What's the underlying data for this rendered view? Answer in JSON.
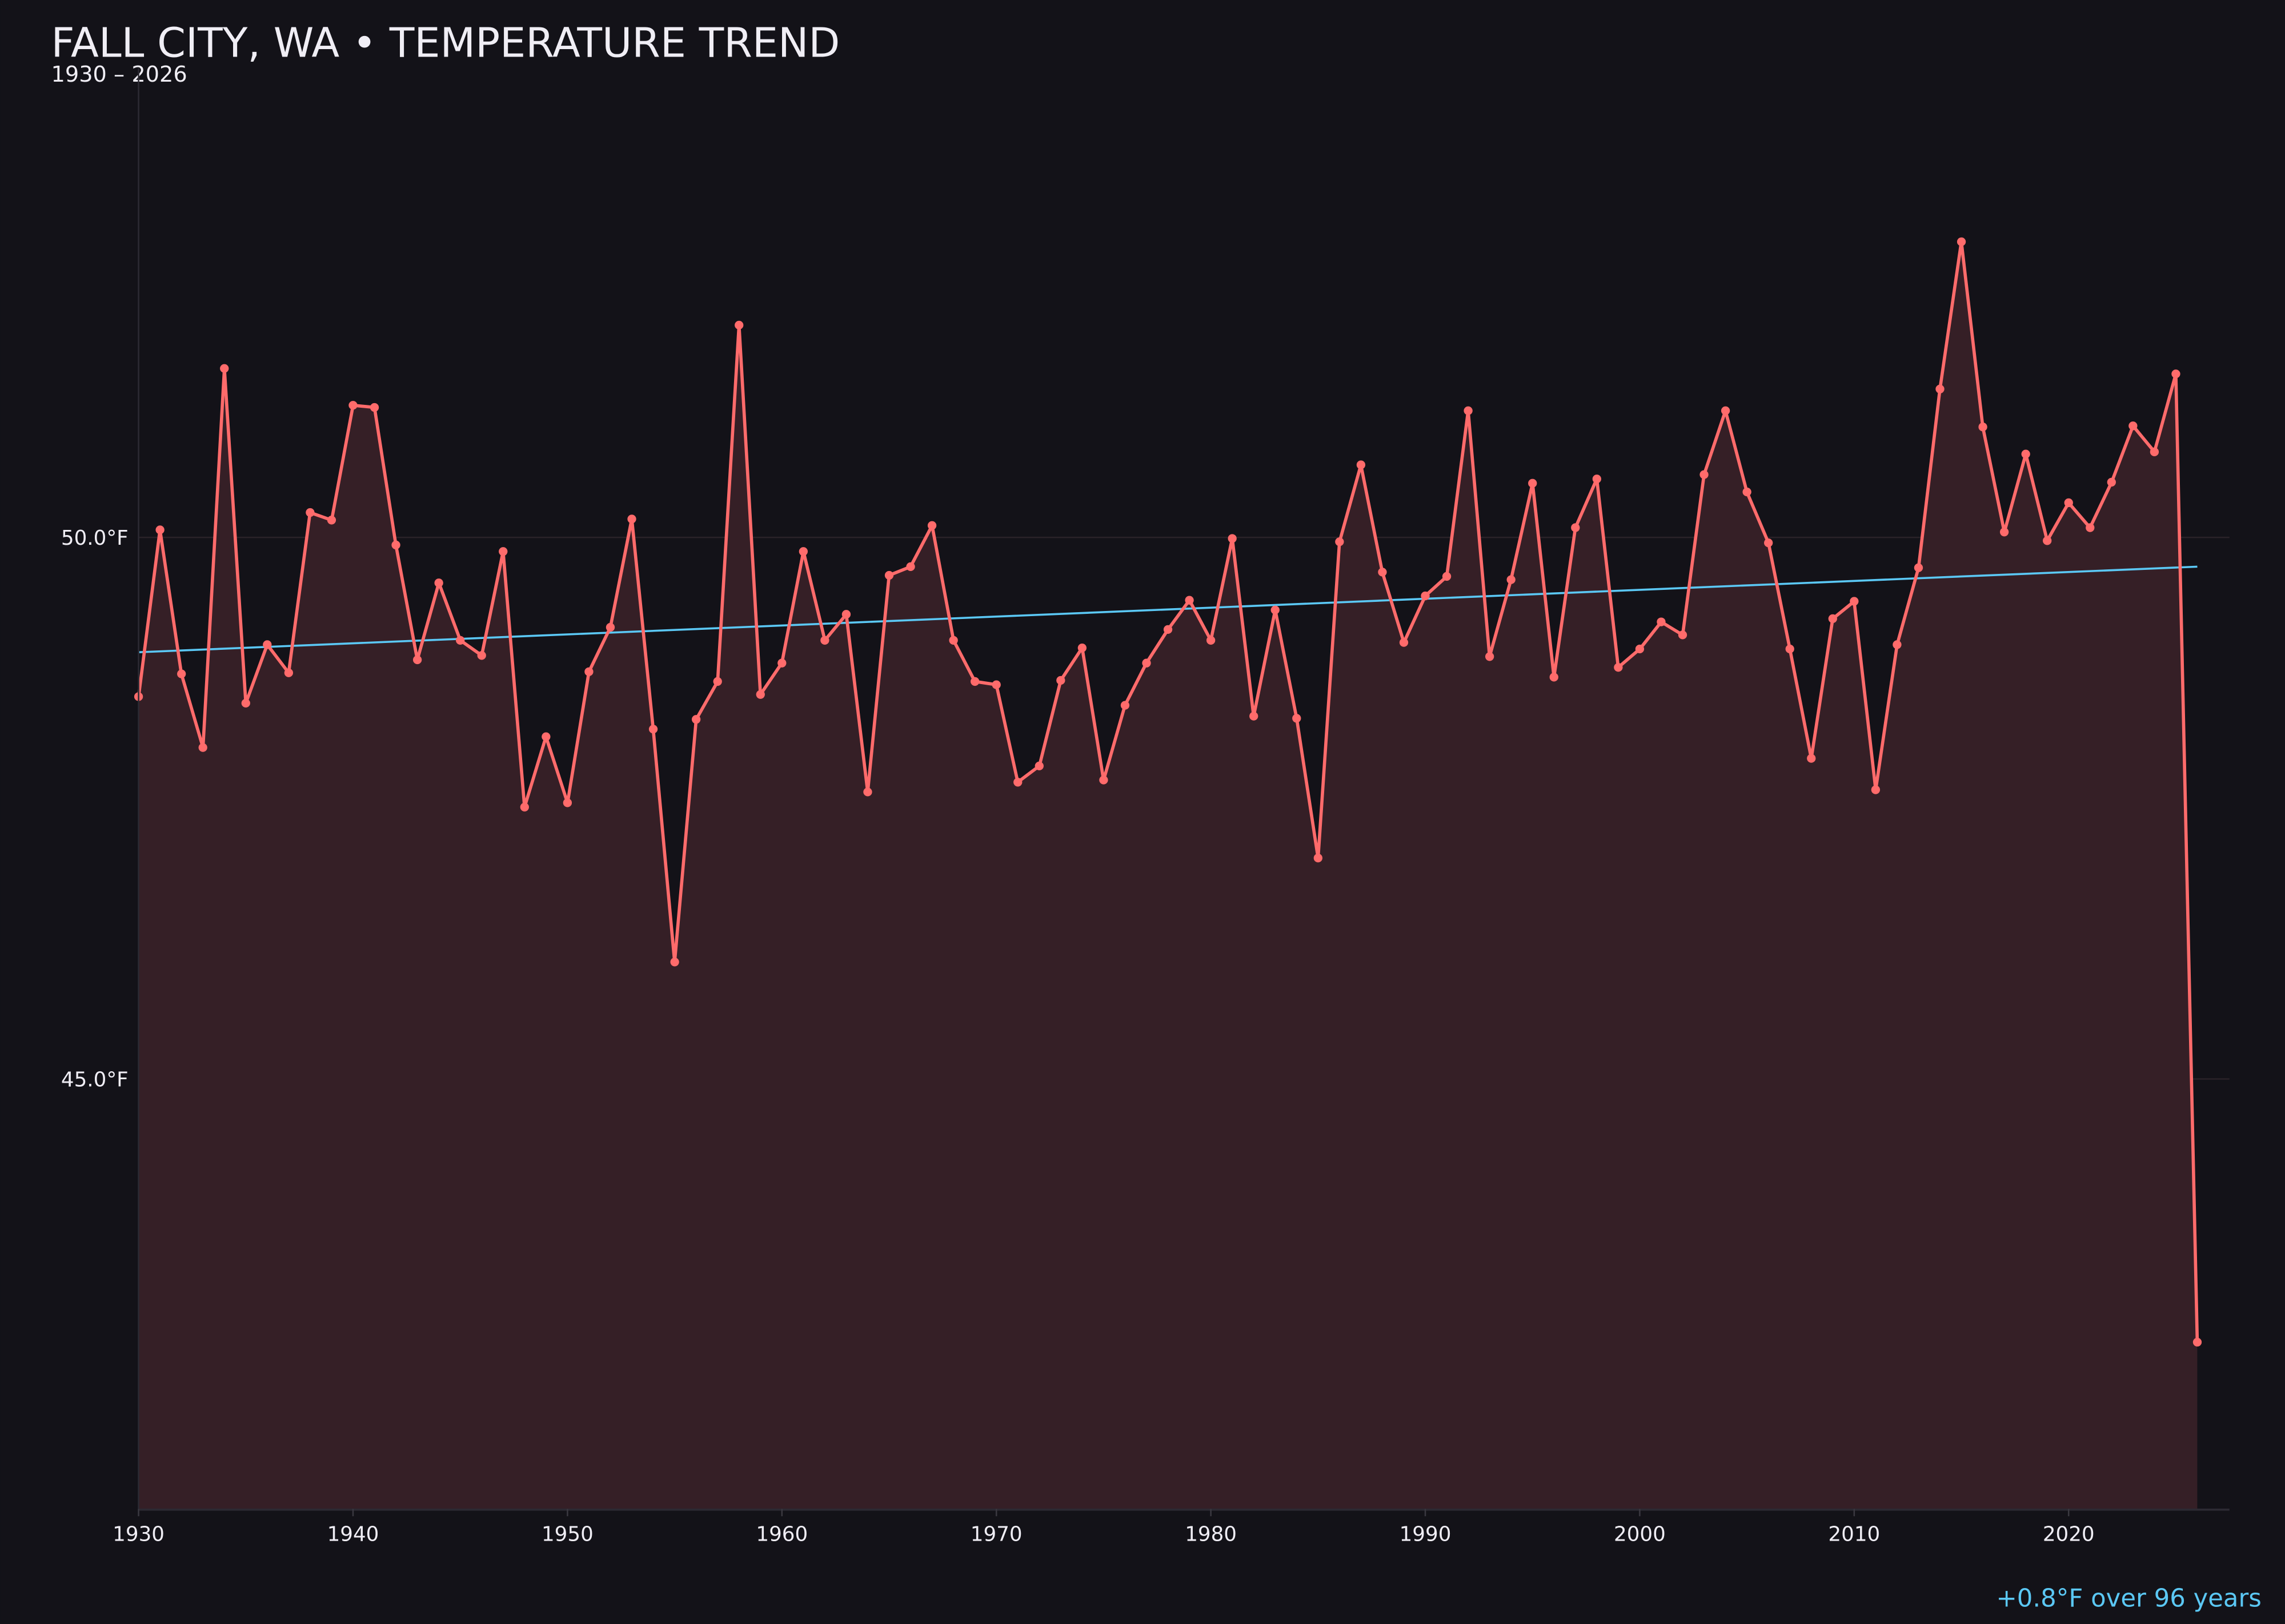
{
  "chart_data": {
    "type": "line",
    "title": "FALL CITY, WA • TEMPERATURE TREND",
    "subtitle": "1930 – 2026",
    "annotation": "+0.8°F over 96 years",
    "xlabel": "",
    "ylabel": "",
    "xlim": [
      1930,
      2027.5
    ],
    "ylim": [
      41.03,
      54.33
    ],
    "x_ticks": [
      "1930",
      "1940",
      "1950",
      "1960",
      "1970",
      "1980",
      "1990",
      "2000",
      "2010",
      "2020"
    ],
    "y_ticks": [
      {
        "value": 45,
        "label": "45.0°F"
      },
      {
        "value": 50,
        "label": "50.0°F"
      }
    ],
    "grid": "horizontal",
    "colors": {
      "background": "#131218",
      "series": "#ff6b6b",
      "fill": "#351f26",
      "trend": "#5bc8f5",
      "text": "#f0eef5",
      "grid": "#2a2228"
    },
    "series": [
      {
        "x": [
          1930,
          1931,
          1932,
          1933,
          1934,
          1935,
          1936,
          1937,
          1938,
          1939,
          1940,
          1941,
          1942,
          1943,
          1944,
          1945,
          1946,
          1947,
          1948,
          1949,
          1950,
          1951,
          1952,
          1953,
          1954,
          1955,
          1956,
          1957,
          1958,
          1959,
          1960,
          1961,
          1962,
          1963,
          1964,
          1965,
          1966,
          1967,
          1968,
          1969,
          1970,
          1971,
          1972,
          1973,
          1974,
          1975,
          1976,
          1977,
          1978,
          1979,
          1980,
          1981,
          1982,
          1983,
          1984,
          1985,
          1986,
          1987,
          1988,
          1989,
          1990,
          1991,
          1992,
          1993,
          1994,
          1995,
          1996,
          1997,
          1998,
          1999,
          2000,
          2001,
          2002,
          2003,
          2004,
          2005,
          2006,
          2007,
          2008,
          2009,
          2010,
          2011,
          2012,
          2013,
          2014,
          2015,
          2016,
          2017,
          2018,
          2019,
          2020,
          2021,
          2022,
          2023,
          2024,
          2025,
          2026
        ],
        "values": [
          48.53,
          50.07,
          48.74,
          48.06,
          51.56,
          48.47,
          49.01,
          48.75,
          50.23,
          50.16,
          51.22,
          51.2,
          49.93,
          48.87,
          49.58,
          49.05,
          48.91,
          49.87,
          47.51,
          48.16,
          47.55,
          48.76,
          49.17,
          50.17,
          48.23,
          46.08,
          48.32,
          48.67,
          51.96,
          48.55,
          48.84,
          49.87,
          49.05,
          49.29,
          47.65,
          49.65,
          49.73,
          50.11,
          49.05,
          48.67,
          48.64,
          47.74,
          47.89,
          48.68,
          48.98,
          47.76,
          48.45,
          48.84,
          49.15,
          49.42,
          49.05,
          49.99,
          48.35,
          49.33,
          48.33,
          47.04,
          49.96,
          50.67,
          49.68,
          49.03,
          49.46,
          49.64,
          51.17,
          48.9,
          49.61,
          50.5,
          48.71,
          50.09,
          50.54,
          48.8,
          48.97,
          49.22,
          49.1,
          50.58,
          51.17,
          50.42,
          49.95,
          48.97,
          47.96,
          49.25,
          49.41,
          47.67,
          49.01,
          49.72,
          51.37,
          52.73,
          51.02,
          50.05,
          50.77,
          49.97,
          50.32,
          50.09,
          50.51,
          51.03,
          50.79,
          51.51,
          42.57
        ]
      }
    ],
    "trend": {
      "x": [
        1930,
        2026
      ],
      "values": [
        48.94,
        49.73
      ]
    }
  }
}
